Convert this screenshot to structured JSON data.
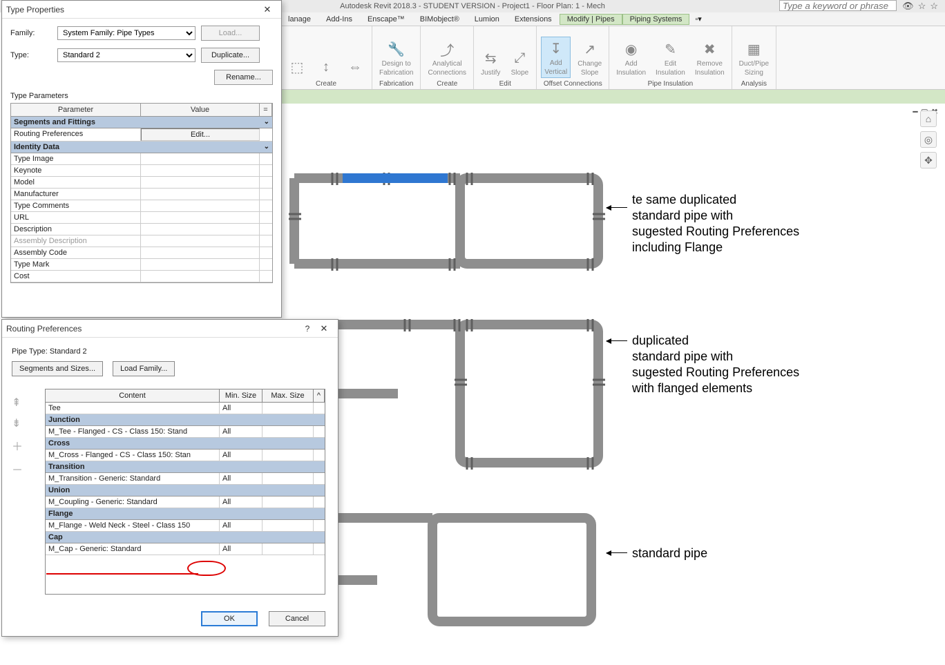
{
  "app": {
    "title": "Autodesk Revit 2018.3 - STUDENT VERSION -   Project1 - Floor Plan: 1 - Mech",
    "search_placeholder": "Type a keyword or phrase"
  },
  "menu": {
    "items": [
      "lanage",
      "Add-Ins",
      "Enscape™",
      "BIMobject®",
      "Lumion",
      "Extensions"
    ],
    "active1": "Modify | Pipes",
    "active2": "Piping Systems"
  },
  "ribbon": {
    "groups": [
      {
        "label": "Create",
        "buttons": [
          {
            "top": "⬚",
            "label": ""
          },
          {
            "top": "↕",
            "label": ""
          },
          {
            "top": "⇔",
            "label": ""
          }
        ]
      },
      {
        "label": "Fabrication",
        "buttons": [
          {
            "top": "🔧",
            "label": "Design to",
            "label2": "Fabrication"
          }
        ]
      },
      {
        "label": "Create",
        "buttons": [
          {
            "top": "⤴",
            "label": "Analytical",
            "label2": "Connections"
          }
        ]
      },
      {
        "label": "Edit",
        "buttons": [
          {
            "top": "⇆",
            "label": "Justify"
          },
          {
            "top": "⤢",
            "label": "Slope"
          }
        ]
      },
      {
        "label": "Offset Connections",
        "buttons": [
          {
            "top": "↧",
            "label": "Add",
            "label2": "Vertical",
            "selected": true
          },
          {
            "top": "↗",
            "label": "Change",
            "label2": "Slope"
          }
        ]
      },
      {
        "label": "Pipe Insulation",
        "buttons": [
          {
            "top": "◉",
            "label": "Add",
            "label2": "Insulation"
          },
          {
            "top": "✎",
            "label": "Edit",
            "label2": "Insulation"
          },
          {
            "top": "✖",
            "label": "Remove",
            "label2": "Insulation"
          }
        ]
      },
      {
        "label": "Analysis",
        "buttons": [
          {
            "top": "▦",
            "label": "Duct/Pipe",
            "label2": "Sizing"
          }
        ]
      }
    ]
  },
  "type_properties": {
    "title": "Type Properties",
    "family_label": "Family:",
    "family_value": "System Family: Pipe Types",
    "type_label": "Type:",
    "type_value": "Standard 2",
    "load_btn": "Load...",
    "duplicate_btn": "Duplicate...",
    "rename_btn": "Rename...",
    "params_label": "Type Parameters",
    "col_param": "Parameter",
    "col_value": "Value",
    "col_eq": "=",
    "sections": [
      {
        "title": "Segments and Fittings",
        "rows": [
          {
            "name": "Routing Preferences",
            "value": "Edit...",
            "edit": true
          }
        ]
      },
      {
        "title": "Identity Data",
        "rows": [
          {
            "name": "Type Image",
            "value": ""
          },
          {
            "name": "Keynote",
            "value": ""
          },
          {
            "name": "Model",
            "value": ""
          },
          {
            "name": "Manufacturer",
            "value": ""
          },
          {
            "name": "Type Comments",
            "value": ""
          },
          {
            "name": "URL",
            "value": ""
          },
          {
            "name": "Description",
            "value": ""
          },
          {
            "name": "Assembly Description",
            "value": "",
            "gray": true
          },
          {
            "name": "Assembly Code",
            "value": ""
          },
          {
            "name": "Type Mark",
            "value": ""
          },
          {
            "name": "Cost",
            "value": ""
          }
        ]
      }
    ]
  },
  "routing_prefs": {
    "title": "Routing Preferences",
    "pipe_type_label": "Pipe Type: Standard 2",
    "seg_btn": "Segments and Sizes...",
    "load_btn": "Load Family...",
    "col_content": "Content",
    "col_min": "Min. Size",
    "col_max": "Max. Size",
    "rows": [
      {
        "type": "row",
        "content": "Tee",
        "min": "All",
        "max": ""
      },
      {
        "type": "section",
        "content": "Junction"
      },
      {
        "type": "row",
        "content": "M_Tee - Flanged - CS - Class 150: Stand",
        "min": "All",
        "max": ""
      },
      {
        "type": "section",
        "content": "Cross"
      },
      {
        "type": "row",
        "content": "M_Cross - Flanged - CS - Class 150: Stan",
        "min": "All",
        "max": ""
      },
      {
        "type": "section",
        "content": "Transition"
      },
      {
        "type": "row",
        "content": "M_Transition - Generic: Standard",
        "min": "All",
        "max": ""
      },
      {
        "type": "section",
        "content": "Union"
      },
      {
        "type": "row",
        "content": "M_Coupling - Generic: Standard",
        "min": "All",
        "max": ""
      },
      {
        "type": "section",
        "content": "Flange"
      },
      {
        "type": "row",
        "content": "M_Flange - Weld Neck - Steel - Class 150",
        "min": "All",
        "max": "",
        "highlight": true
      },
      {
        "type": "section",
        "content": "Cap"
      },
      {
        "type": "row",
        "content": "M_Cap - Generic: Standard",
        "min": "All",
        "max": ""
      }
    ],
    "ok": "OK",
    "cancel": "Cancel"
  },
  "annotations": {
    "a1": "te same duplicated\nstandard pipe with\nsugested Routing Preferences\nincluding Flange",
    "a2": "duplicated\nstandard pipe with\nsugested Routing Preferences\nwith flanged elements",
    "a3": "standard pipe"
  },
  "colors": {
    "pipe": "#8e8e8e",
    "pipe_dark": "#6b6b6b",
    "highlight_pipe": "#2f77d1",
    "section_bg": "#b7c9df",
    "ribbon_active_bg": "#d3e7c6"
  }
}
